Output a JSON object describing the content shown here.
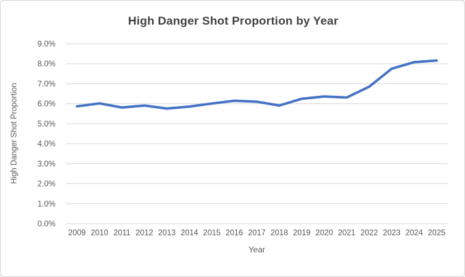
{
  "window": {
    "background": "#ffffff",
    "border_color": "#d8d8d8"
  },
  "chart_data": {
    "type": "line",
    "title": "High Danger Shot Proportion by Year",
    "xlabel": "Year",
    "ylabel": "High Danger Shot Proportion",
    "categories": [
      "2009",
      "2010",
      "2011",
      "2012",
      "2013",
      "2014",
      "2015",
      "2016",
      "2017",
      "2018",
      "2019",
      "2020",
      "2021",
      "2022",
      "2023",
      "2024",
      "2025"
    ],
    "values": [
      5.87,
      6.02,
      5.81,
      5.91,
      5.76,
      5.86,
      6.01,
      6.15,
      6.1,
      5.91,
      6.25,
      6.36,
      6.31,
      6.85,
      7.75,
      8.08,
      8.16
    ],
    "value_unit": "percent",
    "ylim": [
      0,
      9
    ],
    "ytick_step": 1,
    "ytick_labels": [
      "0.0%",
      "1.0%",
      "2.0%",
      "3.0%",
      "4.0%",
      "5.0%",
      "6.0%",
      "7.0%",
      "8.0%",
      "9.0%"
    ],
    "grid": "horizontal",
    "legend": "none",
    "line_color": "#4472C4",
    "gridline_color": "#d9d9d9",
    "tick_label_color": "#595959",
    "title_color": "#404040",
    "axis_title_color": "#595959"
  }
}
